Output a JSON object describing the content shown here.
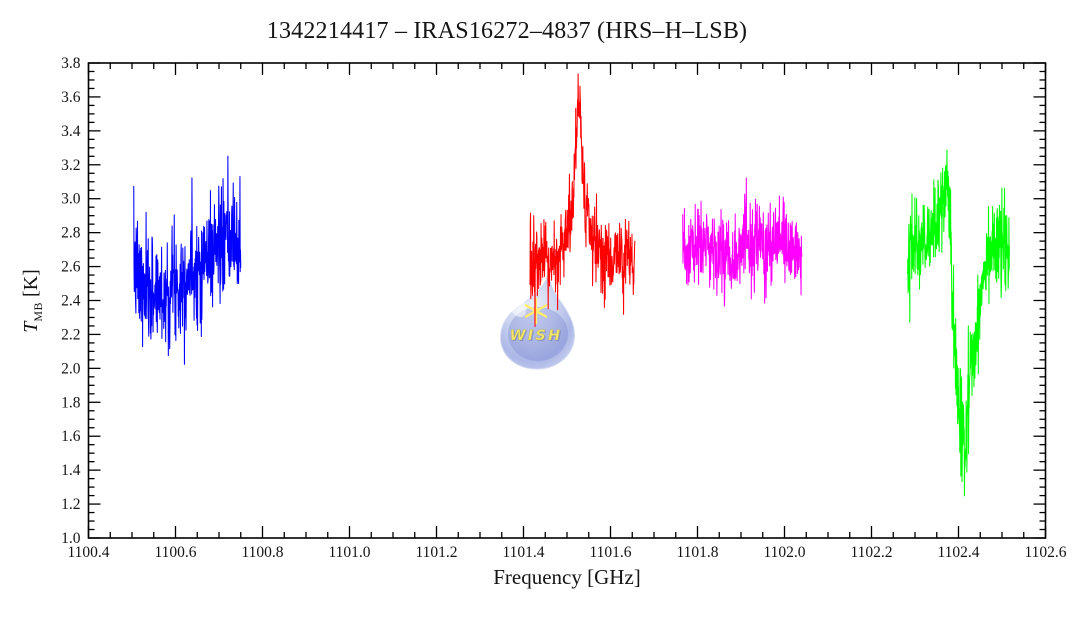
{
  "chart_data": {
    "type": "line",
    "title": "1342214417 – IRAS16272–4837 (HRS–H–LSB)",
    "xlabel": "Frequency [GHz]",
    "ylabel": "T_MB [K]",
    "ylabel_parts": {
      "symbol": "T",
      "subscript": "MB",
      "unit": "[K]"
    },
    "xlim": [
      1100.4,
      1102.6
    ],
    "ylim": [
      1.0,
      3.8
    ],
    "x_major_tick_step": 0.2,
    "x_minor_tick_step": 0.05,
    "y_major_tick_step": 0.2,
    "y_minor_tick_step": 0.05,
    "x_tick_labels": [
      "1100.4",
      "1100.6",
      "1100.8",
      "1101.0",
      "1101.2",
      "1101.4",
      "1101.6",
      "1101.8",
      "1102.0",
      "1102.2",
      "1102.4",
      "1102.6"
    ],
    "y_tick_labels": [
      "1.0",
      "1.2",
      "1.4",
      "1.6",
      "1.8",
      "2.0",
      "2.2",
      "2.4",
      "2.6",
      "2.8",
      "3.0",
      "3.2",
      "3.4",
      "3.6",
      "3.8"
    ],
    "grid": false,
    "legend": false,
    "frame_color": "#000000",
    "background_color": "#ffffff",
    "series": [
      {
        "name": "spectrum-segment-1",
        "color": "#0000ff",
        "x_start": 1100.504,
        "x_end": 1100.75,
        "n_points": 400,
        "seed": 7,
        "mean_anchors": [
          [
            1100.504,
            2.62
          ],
          [
            1100.518,
            2.5
          ],
          [
            1100.532,
            2.42
          ],
          [
            1100.548,
            2.47
          ],
          [
            1100.562,
            2.44
          ],
          [
            1100.578,
            2.42
          ],
          [
            1100.594,
            2.5
          ],
          [
            1100.61,
            2.52
          ],
          [
            1100.628,
            2.56
          ],
          [
            1100.645,
            2.6
          ],
          [
            1100.662,
            2.62
          ],
          [
            1100.68,
            2.7
          ],
          [
            1100.7,
            2.74
          ],
          [
            1100.72,
            2.72
          ],
          [
            1100.736,
            2.74
          ],
          [
            1100.75,
            2.7
          ]
        ],
        "sigma_anchors": [
          [
            1100.504,
            0.165
          ],
          [
            1100.75,
            0.165
          ]
        ]
      },
      {
        "name": "spectrum-segment-2",
        "color": "#ff0000",
        "x_start": 1101.415,
        "x_end": 1101.656,
        "n_points": 400,
        "seed": 13,
        "mean_anchors": [
          [
            1101.415,
            2.58
          ],
          [
            1101.435,
            2.62
          ],
          [
            1101.455,
            2.6
          ],
          [
            1101.475,
            2.64
          ],
          [
            1101.493,
            2.7
          ],
          [
            1101.505,
            2.82
          ],
          [
            1101.513,
            3.0
          ],
          [
            1101.52,
            3.3
          ],
          [
            1101.526,
            3.58
          ],
          [
            1101.53,
            3.55
          ],
          [
            1101.536,
            3.18
          ],
          [
            1101.544,
            2.92
          ],
          [
            1101.554,
            2.78
          ],
          [
            1101.568,
            2.7
          ],
          [
            1101.59,
            2.64
          ],
          [
            1101.615,
            2.66
          ],
          [
            1101.64,
            2.66
          ],
          [
            1101.656,
            2.6
          ]
        ],
        "sigma_anchors": [
          [
            1101.415,
            0.13
          ],
          [
            1101.51,
            0.12
          ],
          [
            1101.523,
            0.08
          ],
          [
            1101.532,
            0.08
          ],
          [
            1101.545,
            0.12
          ],
          [
            1101.656,
            0.13
          ]
        ]
      },
      {
        "name": "spectrum-segment-3",
        "color": "#ff00ff",
        "x_start": 1101.766,
        "x_end": 1102.04,
        "n_points": 430,
        "seed": 23,
        "mean_anchors": [
          [
            1101.766,
            2.66
          ],
          [
            1101.8,
            2.72
          ],
          [
            1101.84,
            2.7
          ],
          [
            1101.88,
            2.68
          ],
          [
            1101.92,
            2.72
          ],
          [
            1101.96,
            2.7
          ],
          [
            1102.0,
            2.72
          ],
          [
            1102.04,
            2.68
          ]
        ],
        "sigma_anchors": [
          [
            1101.766,
            0.125
          ],
          [
            1102.04,
            0.125
          ]
        ]
      },
      {
        "name": "spectrum-segment-4",
        "color": "#00ff00",
        "x_start": 1102.283,
        "x_end": 1102.517,
        "n_points": 420,
        "seed": 42,
        "mean_anchors": [
          [
            1102.283,
            2.68
          ],
          [
            1102.3,
            2.74
          ],
          [
            1102.32,
            2.74
          ],
          [
            1102.34,
            2.8
          ],
          [
            1102.355,
            2.88
          ],
          [
            1102.366,
            3.0
          ],
          [
            1102.374,
            3.08
          ],
          [
            1102.38,
            2.85
          ],
          [
            1102.386,
            2.45
          ],
          [
            1102.392,
            2.05
          ],
          [
            1102.398,
            1.8
          ],
          [
            1102.406,
            1.64
          ],
          [
            1102.414,
            1.58
          ],
          [
            1102.421,
            1.8
          ],
          [
            1102.429,
            2.02
          ],
          [
            1102.438,
            2.12
          ],
          [
            1102.447,
            2.35
          ],
          [
            1102.455,
            2.55
          ],
          [
            1102.463,
            2.68
          ],
          [
            1102.48,
            2.72
          ],
          [
            1102.5,
            2.7
          ],
          [
            1102.517,
            2.66
          ]
        ],
        "sigma_anchors": [
          [
            1102.283,
            0.13
          ],
          [
            1102.36,
            0.12
          ],
          [
            1102.382,
            0.15
          ],
          [
            1102.392,
            0.18
          ],
          [
            1102.4,
            0.17
          ],
          [
            1102.416,
            0.16
          ],
          [
            1102.43,
            0.15
          ],
          [
            1102.45,
            0.13
          ],
          [
            1102.517,
            0.13
          ]
        ]
      }
    ],
    "features": [
      {
        "series": "spectrum-segment-2",
        "kind": "emission-peak",
        "x": 1101.528,
        "y_max": 3.68
      },
      {
        "series": "spectrum-segment-4",
        "kind": "emission-peak",
        "x": 1102.375,
        "y_max": 3.26
      },
      {
        "series": "spectrum-segment-4",
        "kind": "absorption-dip",
        "x": 1102.414,
        "y_min": 1.24
      }
    ]
  },
  "watermark": {
    "text": "WISH",
    "star_glyph": "✶",
    "drop_rim_color": "#c9d3f0",
    "drop_light_color": "#e9eefb",
    "drop_mid_color": "#9aa8e2",
    "drop_dark_color": "#5f6ec8",
    "star_color": "#ffe84a",
    "text_color": "#eee04a",
    "opacity": 0.82
  }
}
